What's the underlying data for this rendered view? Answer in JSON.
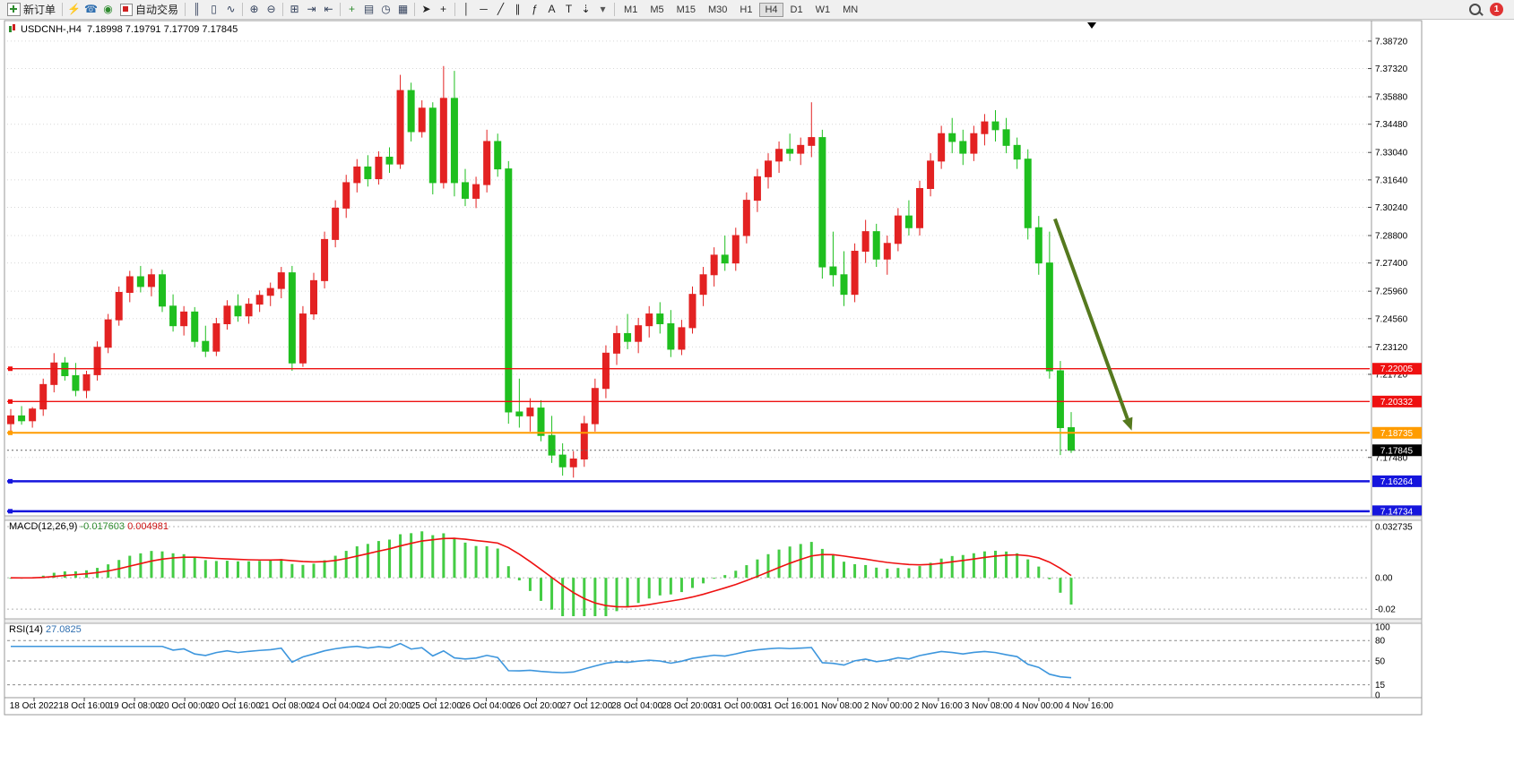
{
  "toolbar": {
    "new_order_label": "新订单",
    "autotrading_label": "自动交易",
    "icons_group1": [
      {
        "name": "lightning-icon",
        "glyph": "⚡",
        "color": "#d78f00"
      },
      {
        "name": "signals-icon",
        "glyph": "☎",
        "color": "#2f6fb0"
      },
      {
        "name": "market-icon",
        "glyph": "◉",
        "color": "#2e8b2e"
      }
    ],
    "icons_group2": [
      {
        "name": "bar-chart-icon",
        "glyph": "║",
        "color": "#33415c"
      },
      {
        "name": "candlestick-icon",
        "glyph": "▯",
        "color": "#33415c"
      },
      {
        "name": "line-chart-icon",
        "glyph": "∿",
        "color": "#33415c"
      },
      {
        "sep": true
      },
      {
        "name": "zoom-in-icon",
        "glyph": "⊕",
        "color": "#33415c"
      },
      {
        "name": "zoom-out-icon",
        "glyph": "⊖",
        "color": "#33415c"
      },
      {
        "sep": true
      },
      {
        "name": "tile-windows-icon",
        "glyph": "⊞",
        "color": "#33415c"
      },
      {
        "name": "auto-scroll-icon",
        "glyph": "⇥",
        "color": "#33415c"
      },
      {
        "name": "chart-shift-icon",
        "glyph": "⇤",
        "color": "#33415c"
      },
      {
        "sep": true
      },
      {
        "name": "new-chart-icon",
        "glyph": "+",
        "color": "#2e8b2e"
      },
      {
        "name": "profiles-icon",
        "glyph": "▤",
        "color": "#33415c"
      },
      {
        "name": "clock-icon",
        "glyph": "◷",
        "color": "#33415c"
      },
      {
        "name": "calendar-icon",
        "glyph": "▦",
        "color": "#33415c"
      },
      {
        "sep": true
      },
      {
        "name": "cursor-icon",
        "glyph": "➤",
        "color": "#222222"
      },
      {
        "name": "crosshair-icon",
        "glyph": "+",
        "color": "#222222"
      },
      {
        "sep": true
      },
      {
        "name": "vertical-line-icon",
        "glyph": "│",
        "color": "#222222"
      },
      {
        "name": "horizontal-line-icon",
        "glyph": "─",
        "color": "#222222"
      },
      {
        "name": "trendline-icon",
        "glyph": "╱",
        "color": "#222222"
      },
      {
        "name": "channel-icon",
        "glyph": "∥",
        "color": "#222222"
      },
      {
        "name": "fibonacci-icon",
        "glyph": "ƒ",
        "color": "#222222"
      },
      {
        "name": "text-icon",
        "glyph": "A",
        "color": "#222222"
      },
      {
        "name": "label-icon",
        "glyph": "T",
        "color": "#222222"
      },
      {
        "name": "arrows-icon",
        "glyph": "⇣",
        "color": "#222222"
      },
      {
        "name": "dropdown-caret-icon",
        "glyph": "▾",
        "color": "#555555"
      }
    ],
    "timeframes": [
      "M1",
      "M5",
      "M15",
      "M30",
      "H1",
      "H4",
      "D1",
      "W1",
      "MN"
    ],
    "active_timeframe": "H4",
    "notification_count": "1"
  },
  "chart": {
    "symbol_title": "USDCNH-,H4",
    "ohlc_text": "7.18998 7.19791 7.17709 7.17845"
  },
  "macd": {
    "label": "MACD(12,26,9)",
    "value_main": "-0.017603",
    "value_signal": "0.004981"
  },
  "rsi": {
    "label": "RSI(14)",
    "value": "27.0825"
  },
  "chart_data": {
    "type": "candlestick",
    "symbol": "USDCNH-",
    "timeframe": "H4",
    "ylim": [
      7.1459,
      7.3963
    ],
    "price_ticks": [
      "7.38720",
      "7.37320",
      "7.35880",
      "7.34480",
      "7.33040",
      "7.31640",
      "7.30240",
      "7.28800",
      "7.27400",
      "7.25960",
      "7.24560",
      "7.23120",
      "7.21720",
      "7.17480"
    ],
    "hlines": [
      {
        "value": 7.22005,
        "label": "7.22005",
        "color": "#ee1111",
        "width": 1.4
      },
      {
        "value": 7.20332,
        "label": "7.20332",
        "color": "#ee1111",
        "width": 1.4
      },
      {
        "value": 7.18735,
        "label": "7.18735",
        "color": "#ff9c00",
        "width": 2
      },
      {
        "value": 7.16264,
        "label": "7.16264",
        "color": "#1515dd",
        "width": 2.5
      },
      {
        "value": 7.14734,
        "label": "7.14734",
        "color": "#1515dd",
        "width": 2.5
      }
    ],
    "bid": {
      "value": 7.17845,
      "label": "7.17845",
      "color": "#000000"
    },
    "time_labels": [
      "18 Oct 2022",
      "18 Oct 16:00",
      "19 Oct 08:00",
      "20 Oct 00:00",
      "20 Oct 16:00",
      "21 Oct 08:00",
      "24 Oct 04:00",
      "24 Oct 20:00",
      "25 Oct 12:00",
      "26 Oct 04:00",
      "26 Oct 20:00",
      "27 Oct 12:00",
      "28 Oct 04:00",
      "28 Oct 20:00",
      "31 Oct 00:00",
      "31 Oct 16:00",
      "1 Nov 08:00",
      "2 Nov 00:00",
      "2 Nov 16:00",
      "3 Nov 08:00",
      "4 Nov 00:00",
      "4 Nov 16:00"
    ],
    "colors": {
      "bull": "#e32222",
      "bear": "#1fbf1f",
      "grid": "#d8d8d8",
      "macd_hist": "#44cc44",
      "macd_signal": "#ee1111",
      "rsi_line": "#3d96dd"
    },
    "ohlc": [
      [
        7.192,
        7.1995,
        7.188,
        7.196
      ],
      [
        7.196,
        7.201,
        7.1915,
        7.1935
      ],
      [
        7.1935,
        7.2005,
        7.19,
        7.1995
      ],
      [
        7.1995,
        7.215,
        7.196,
        7.212
      ],
      [
        7.212,
        7.228,
        7.208,
        7.223
      ],
      [
        7.223,
        7.226,
        7.214,
        7.2165
      ],
      [
        7.2165,
        7.223,
        7.206,
        7.209
      ],
      [
        7.209,
        7.219,
        7.205,
        7.217
      ],
      [
        7.217,
        7.234,
        7.214,
        7.231
      ],
      [
        7.231,
        7.248,
        7.228,
        7.245
      ],
      [
        7.245,
        7.262,
        7.242,
        7.259
      ],
      [
        7.259,
        7.27,
        7.254,
        7.267
      ],
      [
        7.267,
        7.2725,
        7.259,
        7.262
      ],
      [
        7.262,
        7.271,
        7.257,
        7.268
      ],
      [
        7.268,
        7.2705,
        7.249,
        7.252
      ],
      [
        7.252,
        7.258,
        7.239,
        7.242
      ],
      [
        7.242,
        7.252,
        7.237,
        7.249
      ],
      [
        7.249,
        7.2515,
        7.231,
        7.234
      ],
      [
        7.234,
        7.242,
        7.226,
        7.229
      ],
      [
        7.229,
        7.246,
        7.2265,
        7.243
      ],
      [
        7.243,
        7.255,
        7.24,
        7.252
      ],
      [
        7.252,
        7.258,
        7.244,
        7.247
      ],
      [
        7.247,
        7.256,
        7.243,
        7.253
      ],
      [
        7.253,
        7.26,
        7.249,
        7.2575
      ],
      [
        7.2575,
        7.264,
        7.252,
        7.261
      ],
      [
        7.261,
        7.272,
        7.256,
        7.269
      ],
      [
        7.269,
        7.2725,
        7.219,
        7.223
      ],
      [
        7.223,
        7.252,
        7.221,
        7.248
      ],
      [
        7.248,
        7.269,
        7.245,
        7.265
      ],
      [
        7.265,
        7.29,
        7.261,
        7.286
      ],
      [
        7.286,
        7.306,
        7.282,
        7.302
      ],
      [
        7.302,
        7.319,
        7.297,
        7.315
      ],
      [
        7.315,
        7.327,
        7.31,
        7.323
      ],
      [
        7.323,
        7.329,
        7.313,
        7.317
      ],
      [
        7.317,
        7.331,
        7.314,
        7.328
      ],
      [
        7.328,
        7.333,
        7.32,
        7.3245
      ],
      [
        7.3245,
        7.37,
        7.322,
        7.362
      ],
      [
        7.362,
        7.366,
        7.336,
        7.341
      ],
      [
        7.341,
        7.357,
        7.338,
        7.353
      ],
      [
        7.353,
        7.356,
        7.309,
        7.315
      ],
      [
        7.315,
        7.3745,
        7.312,
        7.358
      ],
      [
        7.358,
        7.372,
        7.308,
        7.315
      ],
      [
        7.315,
        7.322,
        7.303,
        7.307
      ],
      [
        7.307,
        7.318,
        7.302,
        7.314
      ],
      [
        7.314,
        7.342,
        7.31,
        7.336
      ],
      [
        7.336,
        7.34,
        7.318,
        7.322
      ],
      [
        7.322,
        7.326,
        7.192,
        7.198
      ],
      [
        7.198,
        7.215,
        7.19,
        7.196
      ],
      [
        7.196,
        7.205,
        7.188,
        7.2
      ],
      [
        7.2,
        7.204,
        7.183,
        7.186
      ],
      [
        7.186,
        7.196,
        7.172,
        7.176
      ],
      [
        7.176,
        7.182,
        7.1655,
        7.17
      ],
      [
        7.17,
        7.178,
        7.1645,
        7.174
      ],
      [
        7.174,
        7.196,
        7.17,
        7.192
      ],
      [
        7.192,
        7.215,
        7.188,
        7.21
      ],
      [
        7.21,
        7.232,
        7.205,
        7.228
      ],
      [
        7.228,
        7.242,
        7.222,
        7.238
      ],
      [
        7.238,
        7.248,
        7.23,
        7.234
      ],
      [
        7.234,
        7.246,
        7.228,
        7.242
      ],
      [
        7.242,
        7.252,
        7.236,
        7.248
      ],
      [
        7.248,
        7.254,
        7.238,
        7.243
      ],
      [
        7.243,
        7.25,
        7.226,
        7.23
      ],
      [
        7.23,
        7.245,
        7.227,
        7.241
      ],
      [
        7.241,
        7.262,
        7.238,
        7.258
      ],
      [
        7.258,
        7.272,
        7.252,
        7.268
      ],
      [
        7.268,
        7.282,
        7.262,
        7.278
      ],
      [
        7.278,
        7.288,
        7.27,
        7.274
      ],
      [
        7.274,
        7.292,
        7.27,
        7.288
      ],
      [
        7.288,
        7.31,
        7.284,
        7.306
      ],
      [
        7.306,
        7.322,
        7.3,
        7.318
      ],
      [
        7.318,
        7.33,
        7.312,
        7.326
      ],
      [
        7.326,
        7.336,
        7.32,
        7.332
      ],
      [
        7.332,
        7.34,
        7.326,
        7.33
      ],
      [
        7.33,
        7.338,
        7.324,
        7.334
      ],
      [
        7.334,
        7.356,
        7.328,
        7.338
      ],
      [
        7.338,
        7.342,
        7.266,
        7.272
      ],
      [
        7.272,
        7.29,
        7.262,
        7.268
      ],
      [
        7.268,
        7.28,
        7.252,
        7.258
      ],
      [
        7.258,
        7.284,
        7.254,
        7.28
      ],
      [
        7.28,
        7.296,
        7.274,
        7.29
      ],
      [
        7.29,
        7.294,
        7.272,
        7.276
      ],
      [
        7.276,
        7.288,
        7.268,
        7.284
      ],
      [
        7.284,
        7.302,
        7.28,
        7.298
      ],
      [
        7.298,
        7.306,
        7.288,
        7.292
      ],
      [
        7.292,
        7.316,
        7.288,
        7.312
      ],
      [
        7.312,
        7.33,
        7.308,
        7.326
      ],
      [
        7.326,
        7.344,
        7.322,
        7.34
      ],
      [
        7.34,
        7.348,
        7.33,
        7.336
      ],
      [
        7.336,
        7.342,
        7.324,
        7.33
      ],
      [
        7.33,
        7.344,
        7.326,
        7.34
      ],
      [
        7.34,
        7.35,
        7.334,
        7.346
      ],
      [
        7.346,
        7.352,
        7.336,
        7.342
      ],
      [
        7.342,
        7.348,
        7.33,
        7.334
      ],
      [
        7.334,
        7.338,
        7.322,
        7.327
      ],
      [
        7.327,
        7.332,
        7.286,
        7.292
      ],
      [
        7.292,
        7.298,
        7.268,
        7.274
      ],
      [
        7.274,
        7.29,
        7.215,
        7.219
      ],
      [
        7.219,
        7.224,
        7.176,
        7.19
      ],
      [
        7.18998,
        7.19791,
        7.17709,
        7.17845
      ]
    ],
    "arrow": {
      "from_bar": 96.5,
      "from_price": 7.2965,
      "to_bar": 103.2,
      "to_price": 7.1945,
      "color": "#55791e",
      "width": 4
    },
    "indicators": {
      "macd": {
        "params": [
          12,
          26,
          9
        ],
        "ylim": [
          -0.0245,
          0.035
        ],
        "ticks": [
          {
            "label": "0.032735",
            "value": 0.032735
          },
          {
            "label": "0.00",
            "value": 0
          },
          {
            "label": "-0.02",
            "value": -0.02
          }
        ],
        "display_main": "-0.017603",
        "display_signal": "0.004981"
      },
      "rsi": {
        "period": 14,
        "value": "27.0825",
        "ylim": [
          0,
          100
        ],
        "ticks": [
          {
            "label": "100",
            "value": 100
          },
          {
            "label": "80",
            "value": 80
          },
          {
            "label": "50",
            "value": 50
          },
          {
            "label": "15",
            "value": 15
          },
          {
            "label": "0",
            "value": 0
          }
        ],
        "levels": [
          80,
          50,
          15
        ]
      }
    }
  }
}
